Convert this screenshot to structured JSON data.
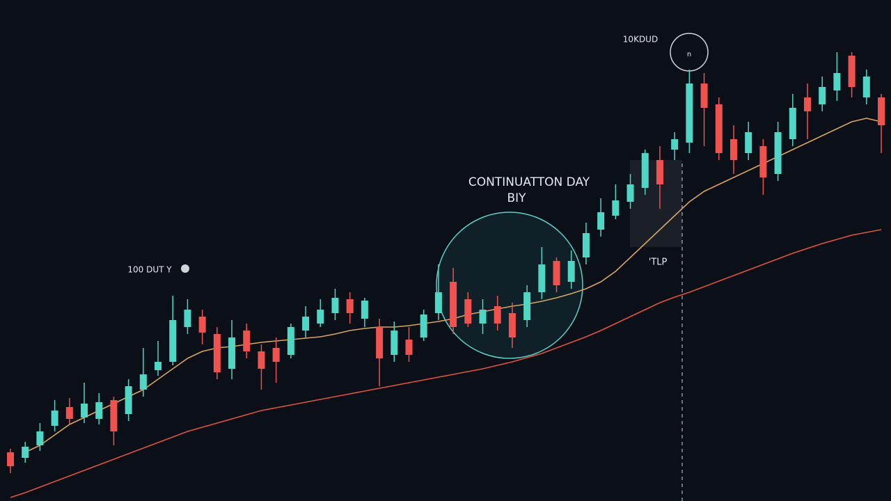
{
  "chart_data": {
    "type": "candlestick",
    "open": [
      70,
      62,
      80,
      108,
      135,
      120,
      118,
      145,
      125,
      160,
      188,
      200,
      250,
      265,
      240,
      190,
      245,
      215,
      220,
      210,
      245,
      255,
      270,
      290,
      262,
      250,
      210,
      232,
      235,
      270,
      315,
      290,
      255,
      280,
      270,
      260,
      300,
      345,
      315,
      350,
      390,
      410,
      430,
      450,
      490,
      505,
      515,
      600,
      570,
      520,
      500,
      510,
      470,
      520,
      580,
      570,
      590,
      640,
      580,
      580
    ],
    "close": [
      50,
      78,
      100,
      130,
      118,
      140,
      142,
      100,
      165,
      182,
      200,
      260,
      275,
      242,
      185,
      235,
      215,
      190,
      200,
      250,
      265,
      275,
      292,
      270,
      288,
      205,
      245,
      210,
      268,
      300,
      250,
      255,
      275,
      255,
      235,
      300,
      340,
      310,
      345,
      385,
      415,
      432,
      455,
      500,
      455,
      520,
      600,
      565,
      500,
      490,
      530,
      465,
      530,
      565,
      560,
      595,
      615,
      595,
      610,
      540
    ],
    "high": [
      75,
      85,
      112,
      145,
      148,
      170,
      155,
      150,
      175,
      220,
      230,
      295,
      290,
      275,
      250,
      260,
      255,
      225,
      235,
      255,
      280,
      290,
      305,
      300,
      292,
      262,
      258,
      250,
      275,
      340,
      335,
      300,
      290,
      295,
      285,
      310,
      365,
      350,
      360,
      400,
      435,
      455,
      470,
      505,
      510,
      530,
      620,
      615,
      580,
      540,
      545,
      520,
      545,
      585,
      600,
      610,
      645,
      645,
      620,
      585
    ],
    "low": [
      40,
      55,
      72,
      100,
      110,
      112,
      110,
      80,
      115,
      150,
      180,
      195,
      240,
      225,
      175,
      175,
      205,
      160,
      170,
      205,
      235,
      250,
      260,
      255,
      250,
      165,
      200,
      200,
      230,
      260,
      240,
      250,
      240,
      245,
      220,
      250,
      290,
      300,
      305,
      340,
      380,
      405,
      420,
      440,
      420,
      490,
      500,
      510,
      490,
      470,
      490,
      440,
      460,
      510,
      520,
      560,
      575,
      580,
      570,
      500
    ],
    "up_color": "#4fd6c4",
    "down_color": "#f0524f",
    "series": [
      {
        "color": "#d9a560",
        "values": [
          null,
          70,
          80,
          95,
          110,
          120,
          130,
          140,
          150,
          160,
          175,
          190,
          205,
          215,
          220,
          222,
          225,
          228,
          230,
          232,
          234,
          236,
          240,
          245,
          248,
          250,
          250,
          252,
          255,
          258,
          262,
          268,
          272,
          276,
          280,
          283,
          287,
          292,
          298,
          305,
          315,
          330,
          350,
          370,
          390,
          410,
          430,
          445,
          455,
          465,
          475,
          485,
          495,
          505,
          515,
          525,
          535,
          545,
          550,
          545
        ]
      },
      {
        "color": "#e0553f",
        "values": [
          5,
          12,
          20,
          28,
          36,
          44,
          52,
          60,
          68,
          76,
          84,
          92,
          100,
          106,
          112,
          118,
          124,
          130,
          134,
          138,
          142,
          146,
          150,
          154,
          158,
          162,
          166,
          170,
          174,
          178,
          182,
          186,
          190,
          195,
          200,
          206,
          212,
          220,
          228,
          236,
          245,
          255,
          265,
          275,
          285,
          293,
          300,
          308,
          316,
          324,
          332,
          340,
          348,
          356,
          363,
          370,
          376,
          382,
          386,
          390
        ]
      }
    ],
    "ylim": [
      0,
      720
    ],
    "annotations": [
      "CONTINUATTON DAY",
      "BIY",
      "100 DUT Y",
      "10KDUD",
      "'TLP",
      "n"
    ]
  }
}
